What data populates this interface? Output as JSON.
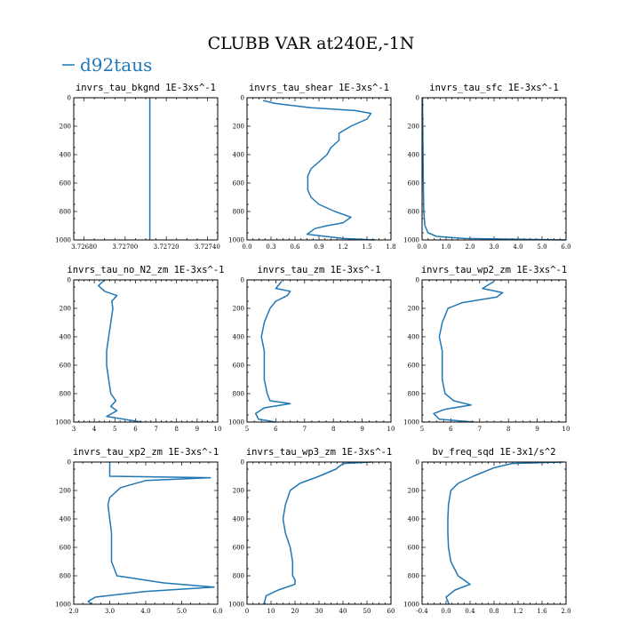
{
  "figure": {
    "title": "CLUBB VAR at240E,-1N",
    "legend": [
      {
        "name": "d92taus",
        "color": "#1f77b4"
      }
    ]
  },
  "chart_data": [
    {
      "type": "line",
      "title": "invrs_tau_bkgnd   1E-3xs^-1",
      "xlim": [
        3.72675,
        3.72745
      ],
      "xticks": [
        3.7268,
        3.727,
        3.7272,
        3.7274
      ],
      "xtick_labels": [
        "3.72680",
        "3.72700",
        "3.72720",
        "3.72740"
      ],
      "ylim": [
        1000,
        0
      ],
      "yticks": [
        0,
        200,
        400,
        600,
        800,
        1000
      ],
      "series": [
        {
          "name": "d92taus",
          "x": [
            3.72712,
            3.72712
          ],
          "y": [
            0,
            1000
          ]
        }
      ]
    },
    {
      "type": "line",
      "title": "invrs_tau_shear   1E-3xs^-1",
      "xlim": [
        0,
        1.8
      ],
      "xticks": [
        0,
        0.3,
        0.6,
        0.9,
        1.2,
        1.5,
        1.8
      ],
      "xtick_labels": [
        "0.0",
        "0.3",
        "0.6",
        "0.9",
        "1.2",
        "1.5",
        "1.8"
      ],
      "ylim": [
        1000,
        0
      ],
      "yticks": [
        0,
        200,
        400,
        600,
        800,
        1000
      ],
      "series": [
        {
          "name": "d92taus",
          "x": [
            0.2,
            0.35,
            0.8,
            1.35,
            1.55,
            1.5,
            1.3,
            1.15,
            1.15,
            1.05,
            1.0,
            0.9,
            0.8,
            0.76,
            0.76,
            0.8,
            0.9,
            1.1,
            1.3,
            1.2,
            1.0,
            0.85,
            0.75,
            1.2,
            1.6
          ],
          "y": [
            20,
            40,
            70,
            90,
            110,
            150,
            200,
            250,
            300,
            350,
            400,
            450,
            500,
            550,
            650,
            700,
            750,
            800,
            840,
            880,
            900,
            920,
            960,
            990,
            1000
          ]
        }
      ]
    },
    {
      "type": "line",
      "title": "invrs_tau_sfc   1E-3xs^-1",
      "xlim": [
        0,
        6
      ],
      "xticks": [
        0,
        1,
        2,
        3,
        4,
        5,
        6
      ],
      "xtick_labels": [
        "0.0",
        "1.0",
        "2.0",
        "3.0",
        "4.0",
        "5.0",
        "6.0"
      ],
      "ylim": [
        1000,
        0
      ],
      "yticks": [
        0,
        200,
        400,
        600,
        800,
        1000
      ],
      "series": [
        {
          "name": "d92taus",
          "x": [
            0.02,
            0.03,
            0.04,
            0.05,
            0.07,
            0.12,
            0.25,
            0.6,
            1.8,
            6.0
          ],
          "y": [
            0,
            200,
            400,
            600,
            800,
            900,
            950,
            975,
            990,
            1000
          ]
        }
      ]
    },
    {
      "type": "line",
      "title": "invrs_tau_no_N2_zm   1E-3xs^-1",
      "xlim": [
        3,
        10
      ],
      "xticks": [
        3,
        4,
        5,
        6,
        7,
        8,
        9,
        10
      ],
      "xtick_labels": [
        "3",
        "4",
        "5",
        "6",
        "7",
        "8",
        "9",
        "10"
      ],
      "ylim": [
        1000,
        0
      ],
      "yticks": [
        0,
        200,
        400,
        600,
        800,
        1000
      ],
      "series": [
        {
          "name": "d92taus",
          "x": [
            4.5,
            4.2,
            4.5,
            5.1,
            4.85,
            4.9,
            4.8,
            4.7,
            4.6,
            4.6,
            4.7,
            4.8,
            5.05,
            4.8,
            5.1,
            4.6,
            6.3
          ],
          "y": [
            0,
            40,
            80,
            110,
            150,
            200,
            300,
            400,
            500,
            600,
            700,
            800,
            850,
            890,
            920,
            960,
            1000
          ]
        }
      ]
    },
    {
      "type": "line",
      "title": "invrs_tau_zm   1E-3xs^-1",
      "xlim": [
        5,
        10
      ],
      "xticks": [
        5,
        6,
        7,
        8,
        9,
        10
      ],
      "xtick_labels": [
        "5",
        "6",
        "7",
        "8",
        "9",
        "10"
      ],
      "ylim": [
        1000,
        0
      ],
      "yticks": [
        0,
        200,
        400,
        600,
        800,
        1000
      ],
      "series": [
        {
          "name": "d92taus",
          "x": [
            6.2,
            6.0,
            6.5,
            6.4,
            6.0,
            5.8,
            5.6,
            5.5,
            5.6,
            5.6,
            5.6,
            5.7,
            5.8,
            6.5,
            5.6,
            5.3,
            5.4,
            6.0
          ],
          "y": [
            10,
            60,
            80,
            110,
            150,
            200,
            300,
            400,
            500,
            600,
            700,
            800,
            850,
            870,
            900,
            940,
            980,
            1000
          ]
        }
      ]
    },
    {
      "type": "line",
      "title": "invrs_tau_wp2_zm   1E-3xs^-1",
      "xlim": [
        5,
        10
      ],
      "xticks": [
        5,
        6,
        7,
        8,
        9,
        10
      ],
      "xtick_labels": [
        "5",
        "6",
        "7",
        "8",
        "9",
        "10"
      ],
      "ylim": [
        1000,
        0
      ],
      "yticks": [
        0,
        200,
        400,
        600,
        800,
        1000
      ],
      "series": [
        {
          "name": "d92taus",
          "x": [
            7.5,
            7.1,
            7.8,
            7.6,
            6.4,
            5.9,
            5.7,
            5.6,
            5.7,
            5.7,
            5.7,
            5.8,
            6.1,
            6.7,
            5.8,
            5.4,
            5.6,
            6.8
          ],
          "y": [
            10,
            60,
            90,
            120,
            160,
            200,
            300,
            400,
            500,
            600,
            700,
            800,
            850,
            880,
            910,
            940,
            980,
            1000
          ]
        }
      ]
    },
    {
      "type": "line",
      "title": "invrs_tau_xp2_zm   1E-3xs^-1",
      "xlim": [
        2,
        6
      ],
      "xticks": [
        2,
        3,
        4,
        5,
        6
      ],
      "xtick_labels": [
        "2.0",
        "3.0",
        "4.0",
        "5.0",
        "6.0"
      ],
      "ylim": [
        1000,
        0
      ],
      "yticks": [
        0,
        200,
        400,
        600,
        800,
        1000
      ],
      "series": [
        {
          "name": "d92taus",
          "x": [
            3.0,
            3.0,
            5.8,
            4.0,
            3.3,
            3.0,
            2.95,
            3.0,
            3.05,
            3.05,
            3.05,
            3.2,
            4.5,
            5.9,
            4.0,
            2.6,
            2.4,
            2.5
          ],
          "y": [
            0,
            100,
            110,
            130,
            180,
            250,
            300,
            400,
            500,
            600,
            700,
            800,
            850,
            880,
            910,
            950,
            980,
            1000
          ]
        }
      ]
    },
    {
      "type": "line",
      "title": "invrs_tau_wp3_zm   1E-3xs^-1",
      "xlim": [
        0,
        60
      ],
      "xticks": [
        0,
        10,
        20,
        30,
        40,
        50,
        60
      ],
      "xtick_labels": [
        "0",
        "10",
        "20",
        "30",
        "40",
        "50",
        "60"
      ],
      "ylim": [
        1000,
        0
      ],
      "yticks": [
        0,
        200,
        400,
        600,
        800,
        1000
      ],
      "series": [
        {
          "name": "d92taus",
          "x": [
            52,
            40,
            37,
            30,
            22,
            18,
            16,
            15,
            16,
            18,
            19,
            19,
            20,
            20,
            13,
            8,
            7
          ],
          "y": [
            0,
            10,
            50,
            100,
            150,
            200,
            300,
            400,
            500,
            600,
            700,
            800,
            830,
            860,
            900,
            940,
            1000
          ]
        }
      ]
    },
    {
      "type": "line",
      "title": "bv_freq_sqd   1E-3x1/s^2",
      "xlim": [
        -0.4,
        2.0
      ],
      "xticks": [
        -0.4,
        0,
        0.4,
        0.8,
        1.2,
        1.6,
        2.0
      ],
      "xtick_labels": [
        "-0.4",
        "0.0",
        "0.4",
        "0.8",
        "1.2",
        "1.6",
        "2.0"
      ],
      "ylim": [
        1000,
        0
      ],
      "yticks": [
        0,
        200,
        400,
        600,
        800,
        1000
      ],
      "series": [
        {
          "name": "d92taus",
          "x": [
            1.95,
            1.1,
            0.8,
            0.45,
            0.2,
            0.08,
            0.04,
            0.03,
            0.03,
            0.04,
            0.08,
            0.2,
            0.3,
            0.4,
            0.15,
            0.0,
            0.05
          ],
          "y": [
            0,
            10,
            40,
            100,
            150,
            200,
            300,
            400,
            500,
            600,
            700,
            800,
            830,
            860,
            900,
            950,
            1000
          ]
        }
      ]
    }
  ]
}
